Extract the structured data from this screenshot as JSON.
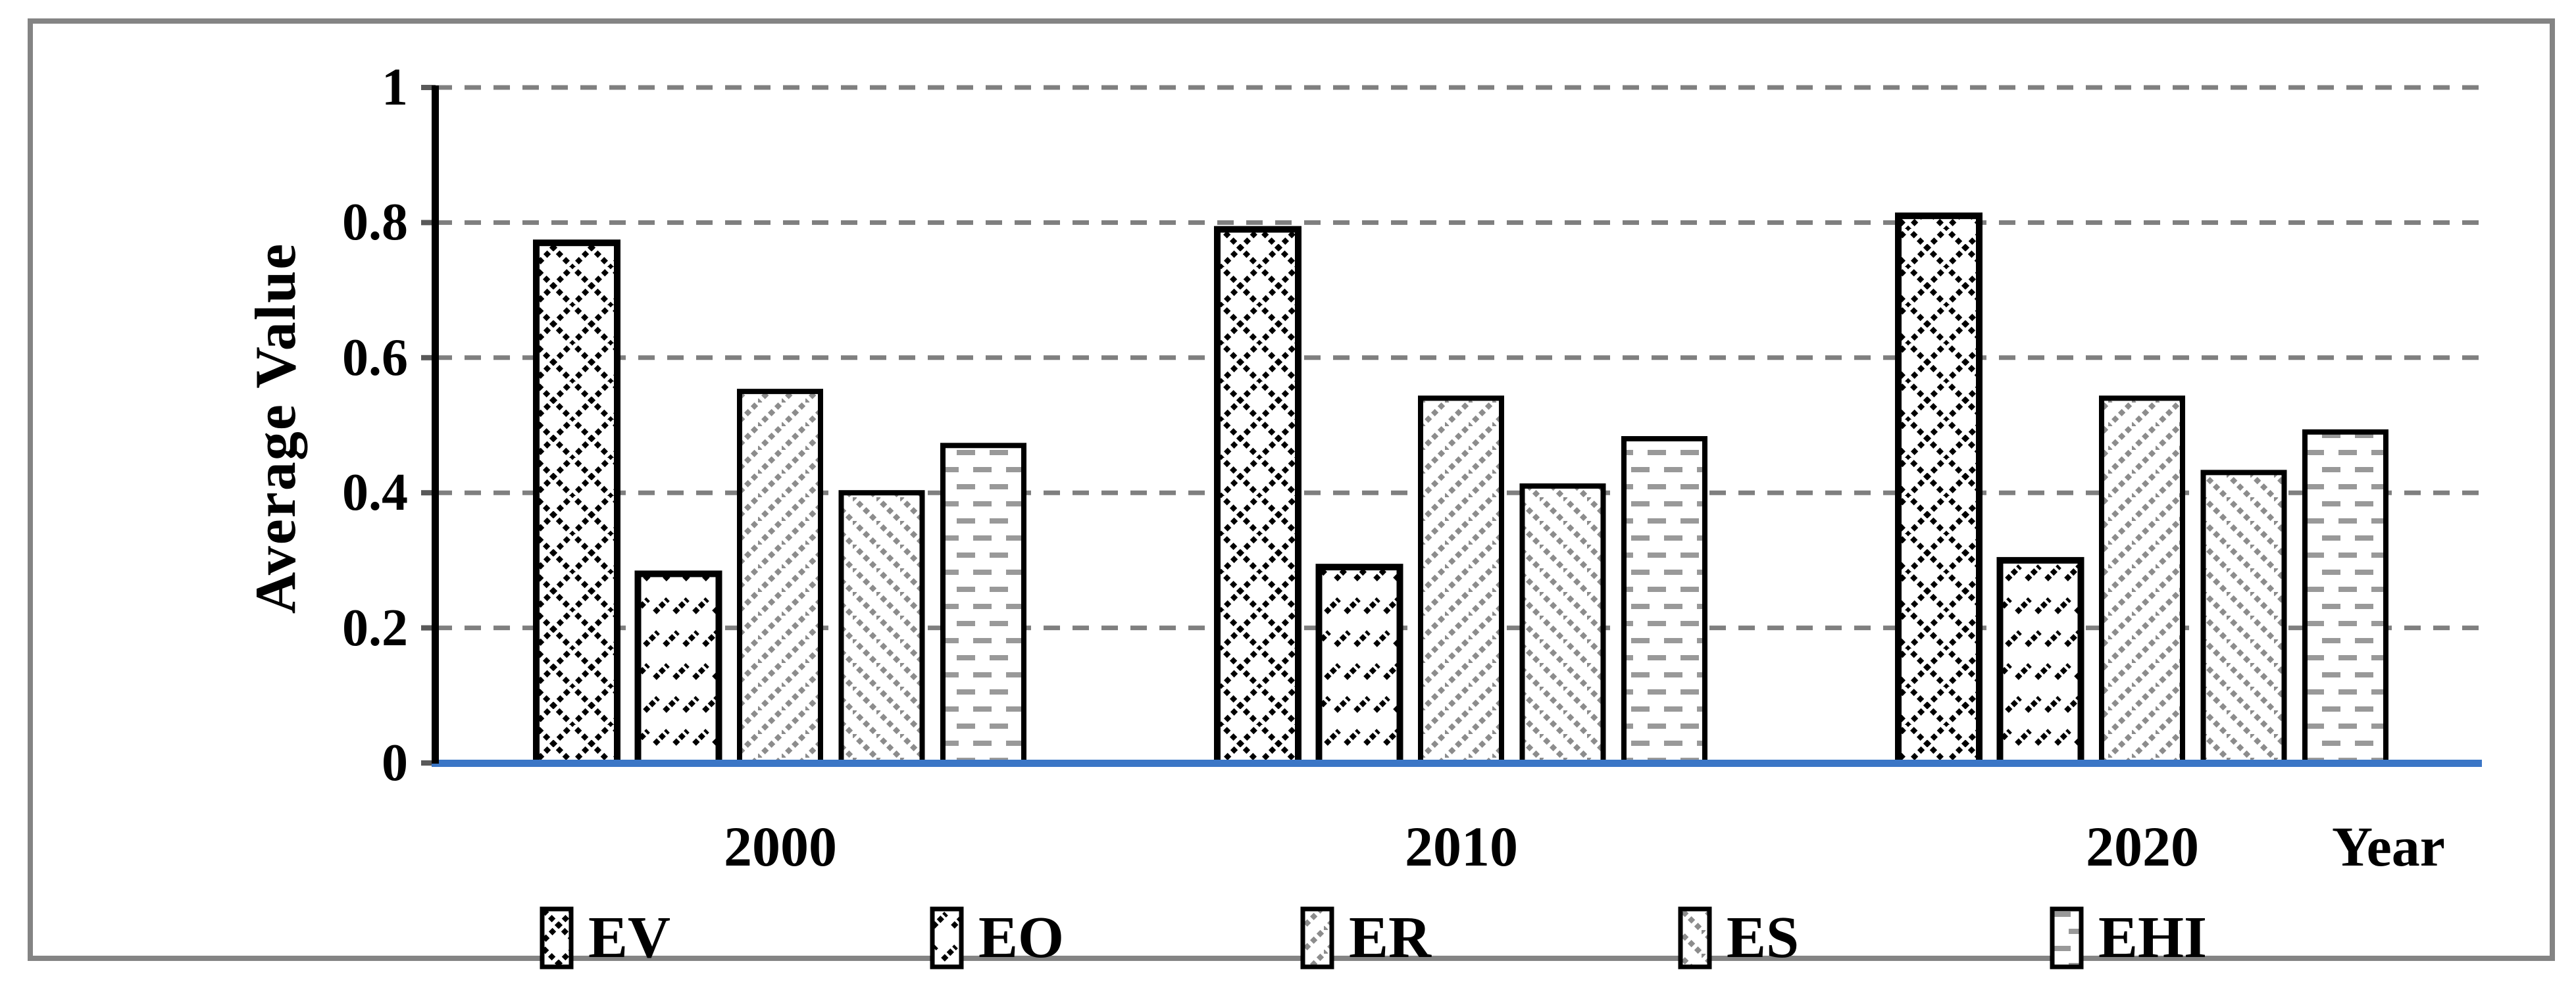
{
  "chart_data": {
    "type": "bar",
    "title": "",
    "categories": [
      "2000",
      "2010",
      "2020"
    ],
    "series": [
      {
        "name": "EV",
        "pattern": "diamond-crosshatch",
        "values": [
          0.77,
          0.79,
          0.81
        ]
      },
      {
        "name": "EO",
        "pattern": "diagonal-dash-rows",
        "values": [
          0.28,
          0.29,
          0.3
        ]
      },
      {
        "name": "ER",
        "pattern": "diagonal-dotted-up",
        "values": [
          0.55,
          0.54,
          0.54
        ]
      },
      {
        "name": "ES",
        "pattern": "diagonal-dotted-down",
        "values": [
          0.4,
          0.41,
          0.43
        ]
      },
      {
        "name": "EHI",
        "pattern": "horizontal-dashes",
        "values": [
          0.47,
          0.48,
          0.49
        ]
      }
    ],
    "xlabel": "Year",
    "ylabel": "Average Value",
    "ylim": [
      0,
      1
    ],
    "yticks": [
      {
        "value": 0,
        "label": "0"
      },
      {
        "value": 0.2,
        "label": "0.2"
      },
      {
        "value": 0.4,
        "label": "0.4"
      },
      {
        "value": 0.6,
        "label": "0.6"
      },
      {
        "value": 0.8,
        "label": "0.8"
      },
      {
        "value": 1,
        "label": "1"
      }
    ],
    "grid": "dashed-horizontal",
    "legend_position": "bottom",
    "colors": {
      "baseline": "#3B76C6",
      "gridline": "#7F7F7F",
      "frame": "#848484",
      "bar_fill": "#FFFFFF",
      "bar_outline": "#000000",
      "pattern_dark": "#000000",
      "pattern_gray": "#8C8C8C"
    }
  }
}
